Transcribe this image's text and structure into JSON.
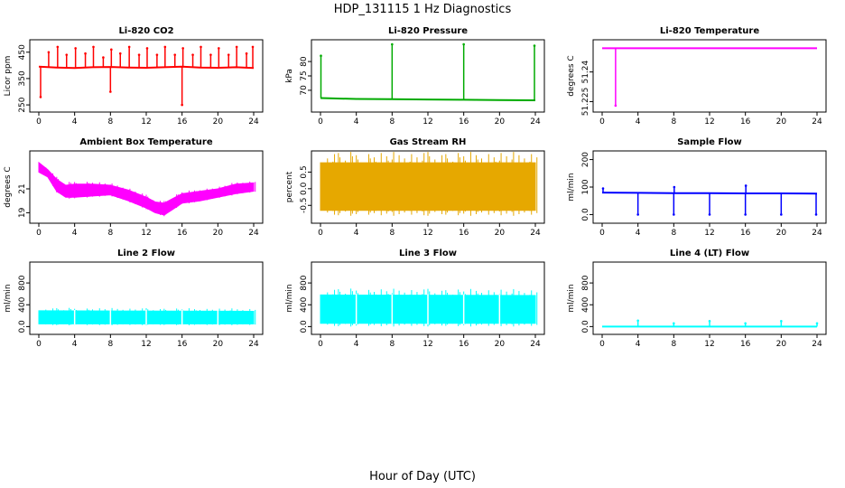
{
  "figure": {
    "title": "HDP_131115  1 Hz Diagnostics",
    "xlabel": "Hour of Day (UTC)"
  },
  "chart_data": [
    {
      "type": "line",
      "title": "Li-820 CO2",
      "ylabel": "Licor ppm",
      "color": "#ff0000",
      "xlim": [
        0,
        24
      ],
      "xticks": [
        0,
        4,
        8,
        12,
        16,
        20,
        24
      ],
      "ylim": [
        240,
        480
      ],
      "yticks": [
        250,
        350,
        450
      ],
      "series": [
        {
          "baseline": [
            [
              0,
              395
            ],
            [
              2,
              392
            ],
            [
              4,
              390
            ],
            [
              6,
              393
            ],
            [
              8,
              394
            ],
            [
              10,
              392
            ],
            [
              12,
              391
            ],
            [
              14,
              393
            ],
            [
              16,
              395
            ],
            [
              18,
              392
            ],
            [
              20,
              391
            ],
            [
              22,
              393
            ],
            [
              24,
              390
            ]
          ],
          "spikes": [
            [
              0.2,
              280
            ],
            [
              1.1,
              450
            ],
            [
              2.1,
              470
            ],
            [
              3.1,
              440
            ],
            [
              4.1,
              465
            ],
            [
              5.2,
              445
            ],
            [
              6.1,
              470
            ],
            [
              7.2,
              430
            ],
            [
              8.0,
              300
            ],
            [
              8.1,
              460
            ],
            [
              9.1,
              445
            ],
            [
              10.1,
              470
            ],
            [
              11.2,
              440
            ],
            [
              12.1,
              465
            ],
            [
              13.2,
              440
            ],
            [
              14.1,
              470
            ],
            [
              15.2,
              440
            ],
            [
              16.0,
              250
            ],
            [
              16.1,
              465
            ],
            [
              17.2,
              440
            ],
            [
              18.1,
              470
            ],
            [
              19.2,
              440
            ],
            [
              20.1,
              465
            ],
            [
              21.2,
              440
            ],
            [
              22.1,
              470
            ],
            [
              23.2,
              445
            ],
            [
              23.9,
              470
            ]
          ]
        }
      ]
    },
    {
      "type": "line",
      "title": "Li-820 Pressure",
      "ylabel": "kPa",
      "color": "#00aa00",
      "xlim": [
        0,
        24
      ],
      "xticks": [
        0,
        4,
        8,
        12,
        16,
        20,
        24
      ],
      "ylim": [
        64,
        86
      ],
      "yticks": [
        70,
        75,
        80
      ],
      "series": [
        {
          "baseline": [
            [
              0,
              67.3
            ],
            [
              1,
              67.2
            ],
            [
              4,
              67.0
            ],
            [
              8,
              66.9
            ],
            [
              12,
              66.8
            ],
            [
              16,
              66.7
            ],
            [
              20,
              66.6
            ],
            [
              24,
              66.5
            ]
          ],
          "spikes": [
            [
              0.05,
              82
            ],
            [
              8.0,
              86
            ],
            [
              16.0,
              86
            ],
            [
              23.9,
              85.5
            ]
          ]
        }
      ]
    },
    {
      "type": "line",
      "title": "Li-820 Temperature",
      "ylabel": "degrees C",
      "color": "#ff00ff",
      "xlim": [
        0,
        24
      ],
      "xticks": [
        0,
        4,
        8,
        12,
        16,
        20,
        24
      ],
      "ylim": [
        51.222,
        51.254
      ],
      "yticks": [
        51.225,
        51.24
      ],
      "series": [
        {
          "baseline": [
            [
              0,
              51.252
            ],
            [
              24,
              51.252
            ]
          ],
          "spikes": [
            [
              1.5,
              51.223
            ]
          ]
        }
      ]
    },
    {
      "type": "area",
      "title": "Ambient Box Temperature",
      "ylabel": "degrees C",
      "color": "#ff00ff",
      "xlim": [
        0,
        24
      ],
      "xticks": [
        0,
        4,
        8,
        12,
        16,
        20,
        24
      ],
      "ylim": [
        18.5,
        23.8
      ],
      "yticks": [
        19,
        21
      ],
      "series": [
        {
          "upper": [
            [
              0,
              23.2
            ],
            [
              1,
              22.6
            ],
            [
              2,
              21.8
            ],
            [
              3,
              21.3
            ],
            [
              4,
              21.4
            ],
            [
              6,
              21.4
            ],
            [
              8,
              21.3
            ],
            [
              10,
              20.9
            ],
            [
              12,
              20.3
            ],
            [
              13,
              19.9
            ],
            [
              14,
              19.8
            ],
            [
              15,
              20.2
            ],
            [
              16,
              20.6
            ],
            [
              18,
              20.8
            ],
            [
              20,
              21.0
            ],
            [
              22,
              21.4
            ],
            [
              24,
              21.5
            ]
          ],
          "lower": [
            [
              0,
              22.4
            ],
            [
              1,
              22.0
            ],
            [
              2,
              20.8
            ],
            [
              3,
              20.3
            ],
            [
              4,
              20.3
            ],
            [
              6,
              20.4
            ],
            [
              8,
              20.5
            ],
            [
              10,
              20.0
            ],
            [
              12,
              19.4
            ],
            [
              13,
              19.0
            ],
            [
              14,
              18.8
            ],
            [
              15,
              19.3
            ],
            [
              16,
              19.8
            ],
            [
              18,
              20.0
            ],
            [
              20,
              20.3
            ],
            [
              22,
              20.6
            ],
            [
              24,
              20.8
            ]
          ]
        }
      ]
    },
    {
      "type": "area",
      "title": "Gas Stream RH",
      "ylabel": "percent",
      "color": "#e6a800",
      "xlim": [
        0,
        24
      ],
      "xticks": [
        0,
        4,
        8,
        12,
        16,
        20,
        24
      ],
      "ylim": [
        -0.9,
        1.0
      ],
      "yticks": [
        -0.5,
        0.0,
        0.5
      ],
      "series": [
        {
          "upper": [
            [
              0,
              0.78
            ],
            [
              24,
              0.78
            ]
          ],
          "lower": [
            [
              0,
              -0.65
            ],
            [
              24,
              -0.65
            ]
          ]
        }
      ]
    },
    {
      "type": "line",
      "title": "Sample Flow",
      "ylabel": "ml/min",
      "color": "#0000ff",
      "xlim": [
        0,
        24
      ],
      "xticks": [
        0,
        4,
        8,
        12,
        16,
        20,
        24
      ],
      "ylim": [
        -15,
        215
      ],
      "yticks": [
        0,
        100,
        200
      ],
      "series": [
        {
          "baseline": [
            [
              0,
              80
            ],
            [
              4,
              79
            ],
            [
              8,
              78
            ],
            [
              12,
              78
            ],
            [
              16,
              77
            ],
            [
              20,
              77
            ],
            [
              24,
              76
            ]
          ],
          "spikes": [
            [
              0.1,
              95
            ],
            [
              4.0,
              0
            ],
            [
              8.0,
              0
            ],
            [
              8.05,
              100
            ],
            [
              12.0,
              0
            ],
            [
              16.0,
              0
            ],
            [
              16.05,
              105
            ],
            [
              20.0,
              0
            ],
            [
              23.9,
              0
            ]
          ]
        }
      ]
    },
    {
      "type": "area",
      "title": "Line 2 Flow",
      "ylabel": "ml/min",
      "color": "#00ffff",
      "xlim": [
        0,
        24
      ],
      "xticks": [
        0,
        4,
        8,
        12,
        16,
        20,
        24
      ],
      "ylim": [
        -60,
        1100
      ],
      "yticks": [
        0,
        400,
        800
      ],
      "series": [
        {
          "upper": [
            [
              0,
              290
            ],
            [
              24,
              280
            ]
          ],
          "lower": [
            [
              0,
              50
            ],
            [
              24,
              50
            ]
          ],
          "gaps": [
            4,
            8,
            12,
            16,
            20
          ]
        }
      ]
    },
    {
      "type": "area",
      "title": "Line 3 Flow",
      "ylabel": "ml/min",
      "color": "#00ffff",
      "xlim": [
        0,
        24
      ],
      "xticks": [
        0,
        4,
        8,
        12,
        16,
        20,
        24
      ],
      "ylim": [
        -60,
        1100
      ],
      "yticks": [
        0,
        400,
        800
      ],
      "series": [
        {
          "upper": [
            [
              0,
              580
            ],
            [
              24,
              570
            ]
          ],
          "lower": [
            [
              0,
              60
            ],
            [
              24,
              60
            ]
          ],
          "gaps": [
            4,
            8,
            12,
            16,
            20
          ]
        }
      ]
    },
    {
      "type": "line",
      "title": "Line 4 (LT) Flow",
      "ylabel": "ml/min",
      "color": "#00ffff",
      "xlim": [
        0,
        24
      ],
      "xticks": [
        0,
        4,
        8,
        12,
        16,
        20,
        24
      ],
      "ylim": [
        -60,
        1100
      ],
      "yticks": [
        0,
        400,
        800
      ],
      "series": [
        {
          "baseline": [
            [
              0,
              0
            ],
            [
              24,
              0
            ]
          ],
          "spikes": [
            [
              4.0,
              110
            ],
            [
              8.0,
              60
            ],
            [
              12.0,
              100
            ],
            [
              16.0,
              60
            ],
            [
              20.0,
              100
            ],
            [
              24,
              60
            ]
          ]
        }
      ]
    }
  ]
}
